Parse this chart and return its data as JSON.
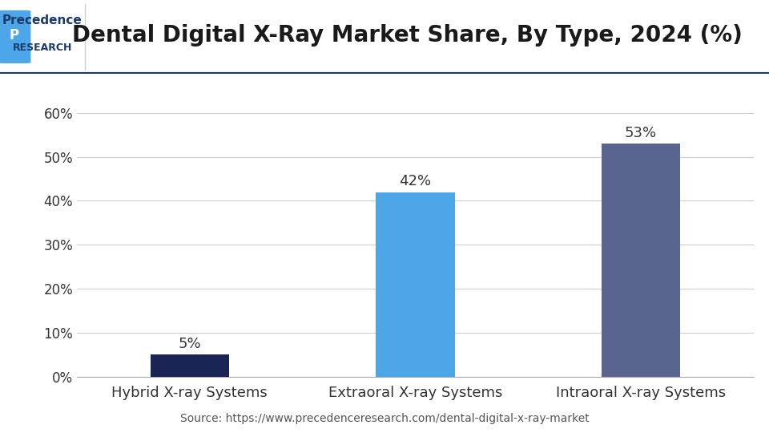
{
  "title": "Dental Digital X-Ray Market Share, By Type, 2024 (%)",
  "categories": [
    "Hybrid X-ray Systems",
    "Extraoral X-ray Systems",
    "Intraoral X-ray Systems"
  ],
  "values": [
    5,
    42,
    53
  ],
  "bar_colors": [
    "#1a2455",
    "#4da6e8",
    "#5a6490"
  ],
  "value_labels": [
    "5%",
    "42%",
    "53%"
  ],
  "yticks": [
    0,
    10,
    20,
    30,
    40,
    50,
    60
  ],
  "ytick_labels": [
    "0%",
    "10%",
    "20%",
    "30%",
    "40%",
    "50%",
    "60%"
  ],
  "ylim": [
    0,
    65
  ],
  "source_text": "Source: https://www.precedenceresearch.com/dental-digital-x-ray-market",
  "bg_color": "#ffffff",
  "plot_bg_color": "#ffffff",
  "header_bg_color": "#ffffff",
  "title_fontsize": 20,
  "label_fontsize": 13,
  "tick_fontsize": 12,
  "bar_label_fontsize": 13,
  "source_fontsize": 10,
  "grid_color": "#cccccc",
  "title_color": "#1a1a1a",
  "tick_color": "#333333",
  "header_line_color": "#1a3a6b"
}
